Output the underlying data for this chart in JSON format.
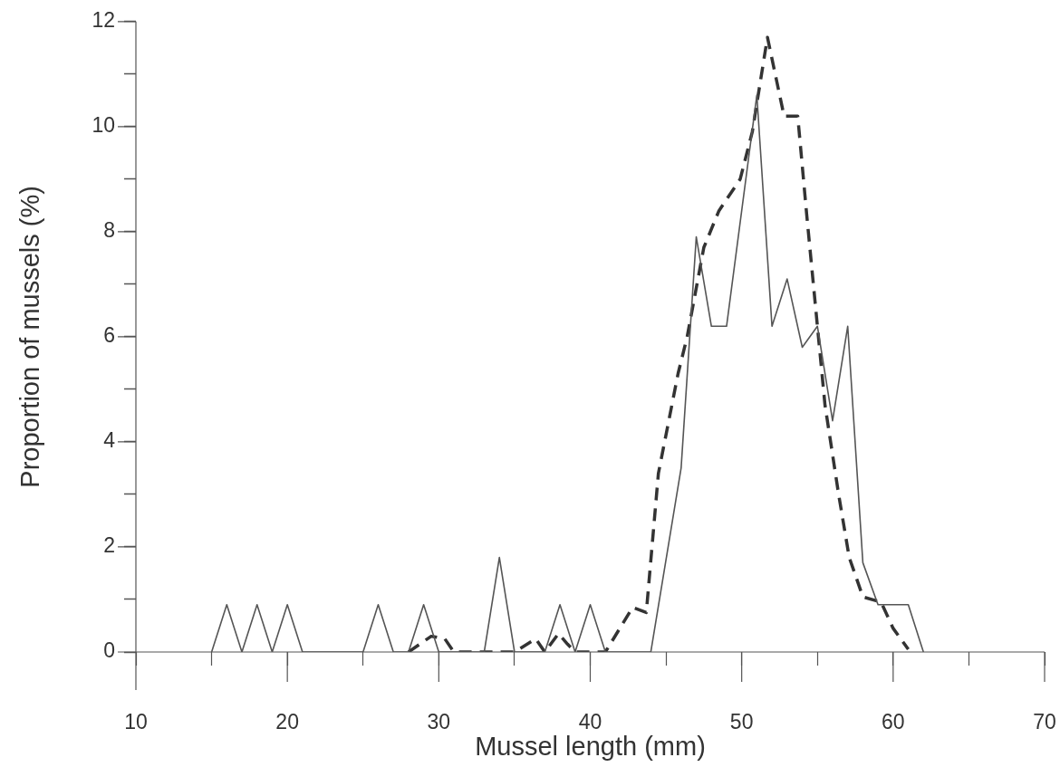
{
  "chart_data": {
    "type": "line",
    "xlabel": "Mussel length (mm)",
    "ylabel": "Proportion of mussels (%)",
    "marker": "none",
    "legend": false,
    "xlim": [
      10,
      70
    ],
    "xticks": [
      10,
      {
        "value": 15,
        "label": null
      },
      20,
      {
        "value": 25,
        "label": null
      },
      30,
      {
        "value": 35,
        "label": null
      },
      40,
      {
        "value": 45,
        "label": null
      },
      50,
      {
        "value": 55,
        "label": null
      },
      60,
      {
        "value": 65,
        "label": null
      },
      70
    ],
    "ylim": [
      0,
      12
    ],
    "yticks": [
      0,
      {
        "value": 1,
        "label": null
      },
      2,
      {
        "value": 3,
        "label": null
      },
      4,
      {
        "value": 5,
        "label": null
      },
      6,
      {
        "value": 7,
        "label": null
      },
      8,
      {
        "value": 9,
        "label": null
      },
      10,
      {
        "value": 11,
        "label": null
      },
      12
    ],
    "series": [
      {
        "color": "#555555",
        "line_style": "solid",
        "x": [
          15,
          16,
          17,
          18,
          19,
          20,
          21,
          25,
          26,
          27,
          28,
          29,
          30,
          33,
          34,
          35,
          37,
          38,
          39,
          40,
          41,
          44,
          46,
          47,
          48,
          49,
          51,
          52,
          53,
          54,
          55,
          56,
          57,
          58,
          59,
          61,
          62
        ],
        "values": [
          0,
          0.9,
          0,
          0.9,
          0,
          0.9,
          0,
          0,
          0.9,
          0,
          0,
          0.9,
          0,
          0,
          1.8,
          0,
          0,
          0.9,
          0,
          0.9,
          0,
          0,
          3.5,
          7.9,
          6.2,
          6.2,
          10.6,
          6.2,
          7.1,
          5.8,
          6.2,
          4.4,
          6.2,
          1.7,
          0.9,
          0.9,
          0
        ]
      },
      {
        "color": "#333333",
        "line_style": "dashed",
        "x": [
          28,
          29.5,
          30.4,
          31,
          35,
          36.4,
          37,
          37.9,
          38.5,
          39,
          41,
          42.8,
          43.7,
          44.5,
          45.8,
          46.4,
          47.5,
          48.5,
          49.9,
          50.7,
          51.7,
          52.8,
          53.7,
          54.3,
          55,
          55.5,
          56.4,
          57.1,
          58,
          59.2,
          60,
          61
        ],
        "values": [
          0,
          0.3,
          0.25,
          0,
          0,
          0.25,
          0,
          0.35,
          0.15,
          0,
          0,
          0.85,
          0.75,
          3.4,
          5.3,
          6,
          7.7,
          8.4,
          9,
          9.9,
          11.7,
          10.2,
          10.2,
          8.3,
          6.2,
          4.7,
          3,
          1.8,
          1.05,
          0.95,
          0.45,
          0.05
        ]
      }
    ]
  }
}
